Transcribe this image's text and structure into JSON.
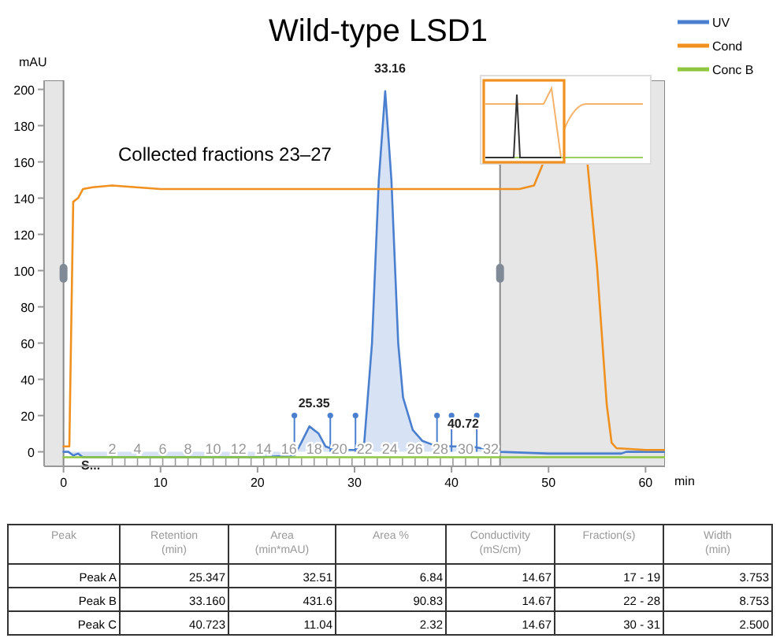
{
  "chart_data": {
    "type": "line",
    "title": "Wild-type LSD1",
    "ylabel": "mAU",
    "xlabel": "min",
    "xlim": [
      -2,
      62
    ],
    "xticks": [
      0,
      10,
      20,
      30,
      40,
      50,
      60
    ],
    "ylim": [
      -8,
      205
    ],
    "yticks": [
      0,
      20,
      40,
      60,
      80,
      100,
      120,
      140,
      160,
      180,
      200
    ],
    "x2lim": [
      -3.4,
      45.8
    ],
    "x2ticks": [
      2,
      {
        "value": 3,
        "label": null
      },
      4,
      {
        "value": 5,
        "label": null
      },
      6,
      {
        "value": 7,
        "label": null
      },
      8,
      {
        "value": 9,
        "label": null
      },
      10,
      {
        "value": 11,
        "label": null
      },
      12,
      {
        "value": 13,
        "label": null
      },
      14,
      {
        "value": 15,
        "label": null
      },
      16,
      {
        "value": 17,
        "label": null
      },
      18,
      {
        "value": 19,
        "label": null
      },
      20,
      {
        "value": 21,
        "label": null
      },
      22,
      {
        "value": 23,
        "label": null
      },
      24,
      {
        "value": 25,
        "label": null
      },
      26,
      {
        "value": 27,
        "label": null
      },
      28,
      {
        "value": 29,
        "label": null
      },
      30,
      {
        "value": 31,
        "label": null
      },
      32
    ],
    "legend": "top right",
    "grid": false,
    "bands": [
      {
        "axis": "x",
        "from": -2,
        "to": 0,
        "color": "#e6e6e6"
      },
      {
        "axis": "x",
        "from": 45,
        "to": 62,
        "color": "#e6e6e6"
      }
    ],
    "series": [
      {
        "name": "UV",
        "type": "area",
        "color": "#4a7fcf",
        "x": [
          0,
          0.5,
          1,
          1.5,
          2,
          5,
          10,
          20,
          23.8,
          24.5,
          25.35,
          26.3,
          27,
          28,
          30,
          31,
          31.8,
          32.5,
          33.16,
          33.8,
          34.5,
          35,
          36,
          37,
          38,
          40,
          42,
          43,
          45,
          50,
          55,
          57.5,
          58,
          62
        ],
        "values": [
          0,
          0,
          -2,
          -1,
          -3,
          -3,
          -3,
          -3,
          -2,
          5,
          14,
          10,
          3,
          1,
          1,
          5,
          60,
          150,
          199,
          150,
          60,
          30,
          12,
          6,
          4,
          3,
          3,
          2,
          0,
          -1,
          -1,
          -1,
          0,
          0
        ]
      },
      {
        "name": "Cond",
        "color": "#f0901e",
        "x": [
          0,
          0.6,
          1,
          1.5,
          2,
          3,
          5,
          10,
          20,
          30,
          40,
          45,
          47,
          48.5,
          49.5,
          54,
          55,
          56,
          56.5,
          57,
          60,
          62
        ],
        "values": [
          3,
          3,
          138,
          140,
          145,
          146,
          147,
          145,
          145,
          145,
          145,
          145,
          145,
          147,
          160,
          160,
          102,
          26,
          5,
          2,
          1,
          1
        ]
      },
      {
        "name": "Conc B",
        "color": "#8dc63f",
        "x": [
          0,
          62
        ],
        "values": [
          -3,
          -3
        ]
      },
      {
        "type": "lollipop",
        "color": "#4a7fcf",
        "x": [
          23.8,
          27.5,
          30.1,
          38.5,
          40,
          42.6
        ],
        "values": [
          20,
          20,
          20,
          20,
          20,
          20
        ]
      }
    ],
    "annotations": [
      "Collected fractions 23–27",
      {
        "text": "33.16",
        "x": 33.16,
        "y": 199
      },
      {
        "text": "25.35",
        "x": 25.35,
        "y": 14
      },
      {
        "text": "40.72",
        "x": 40.72,
        "y": 3
      },
      {
        "text": "S...",
        "x": 1.5,
        "y": -3
      },
      "Peak",
      "Retention (min)",
      "Area (min*mAU)",
      "Area %",
      "Conductivity (mS/cm)",
      "Fraction(s)",
      "Width (min)",
      "Peak A",
      "25.347",
      "32.51",
      "6.84",
      "14.67",
      "17 - 19",
      "3.753",
      "Peak B",
      "33.160",
      "431.6",
      "90.83",
      "14.67",
      "22 - 28",
      "8.753",
      "Peak C",
      "40.723",
      "11.04",
      "2.32",
      "14.67",
      "30 - 31",
      "2.500"
    ]
  }
}
